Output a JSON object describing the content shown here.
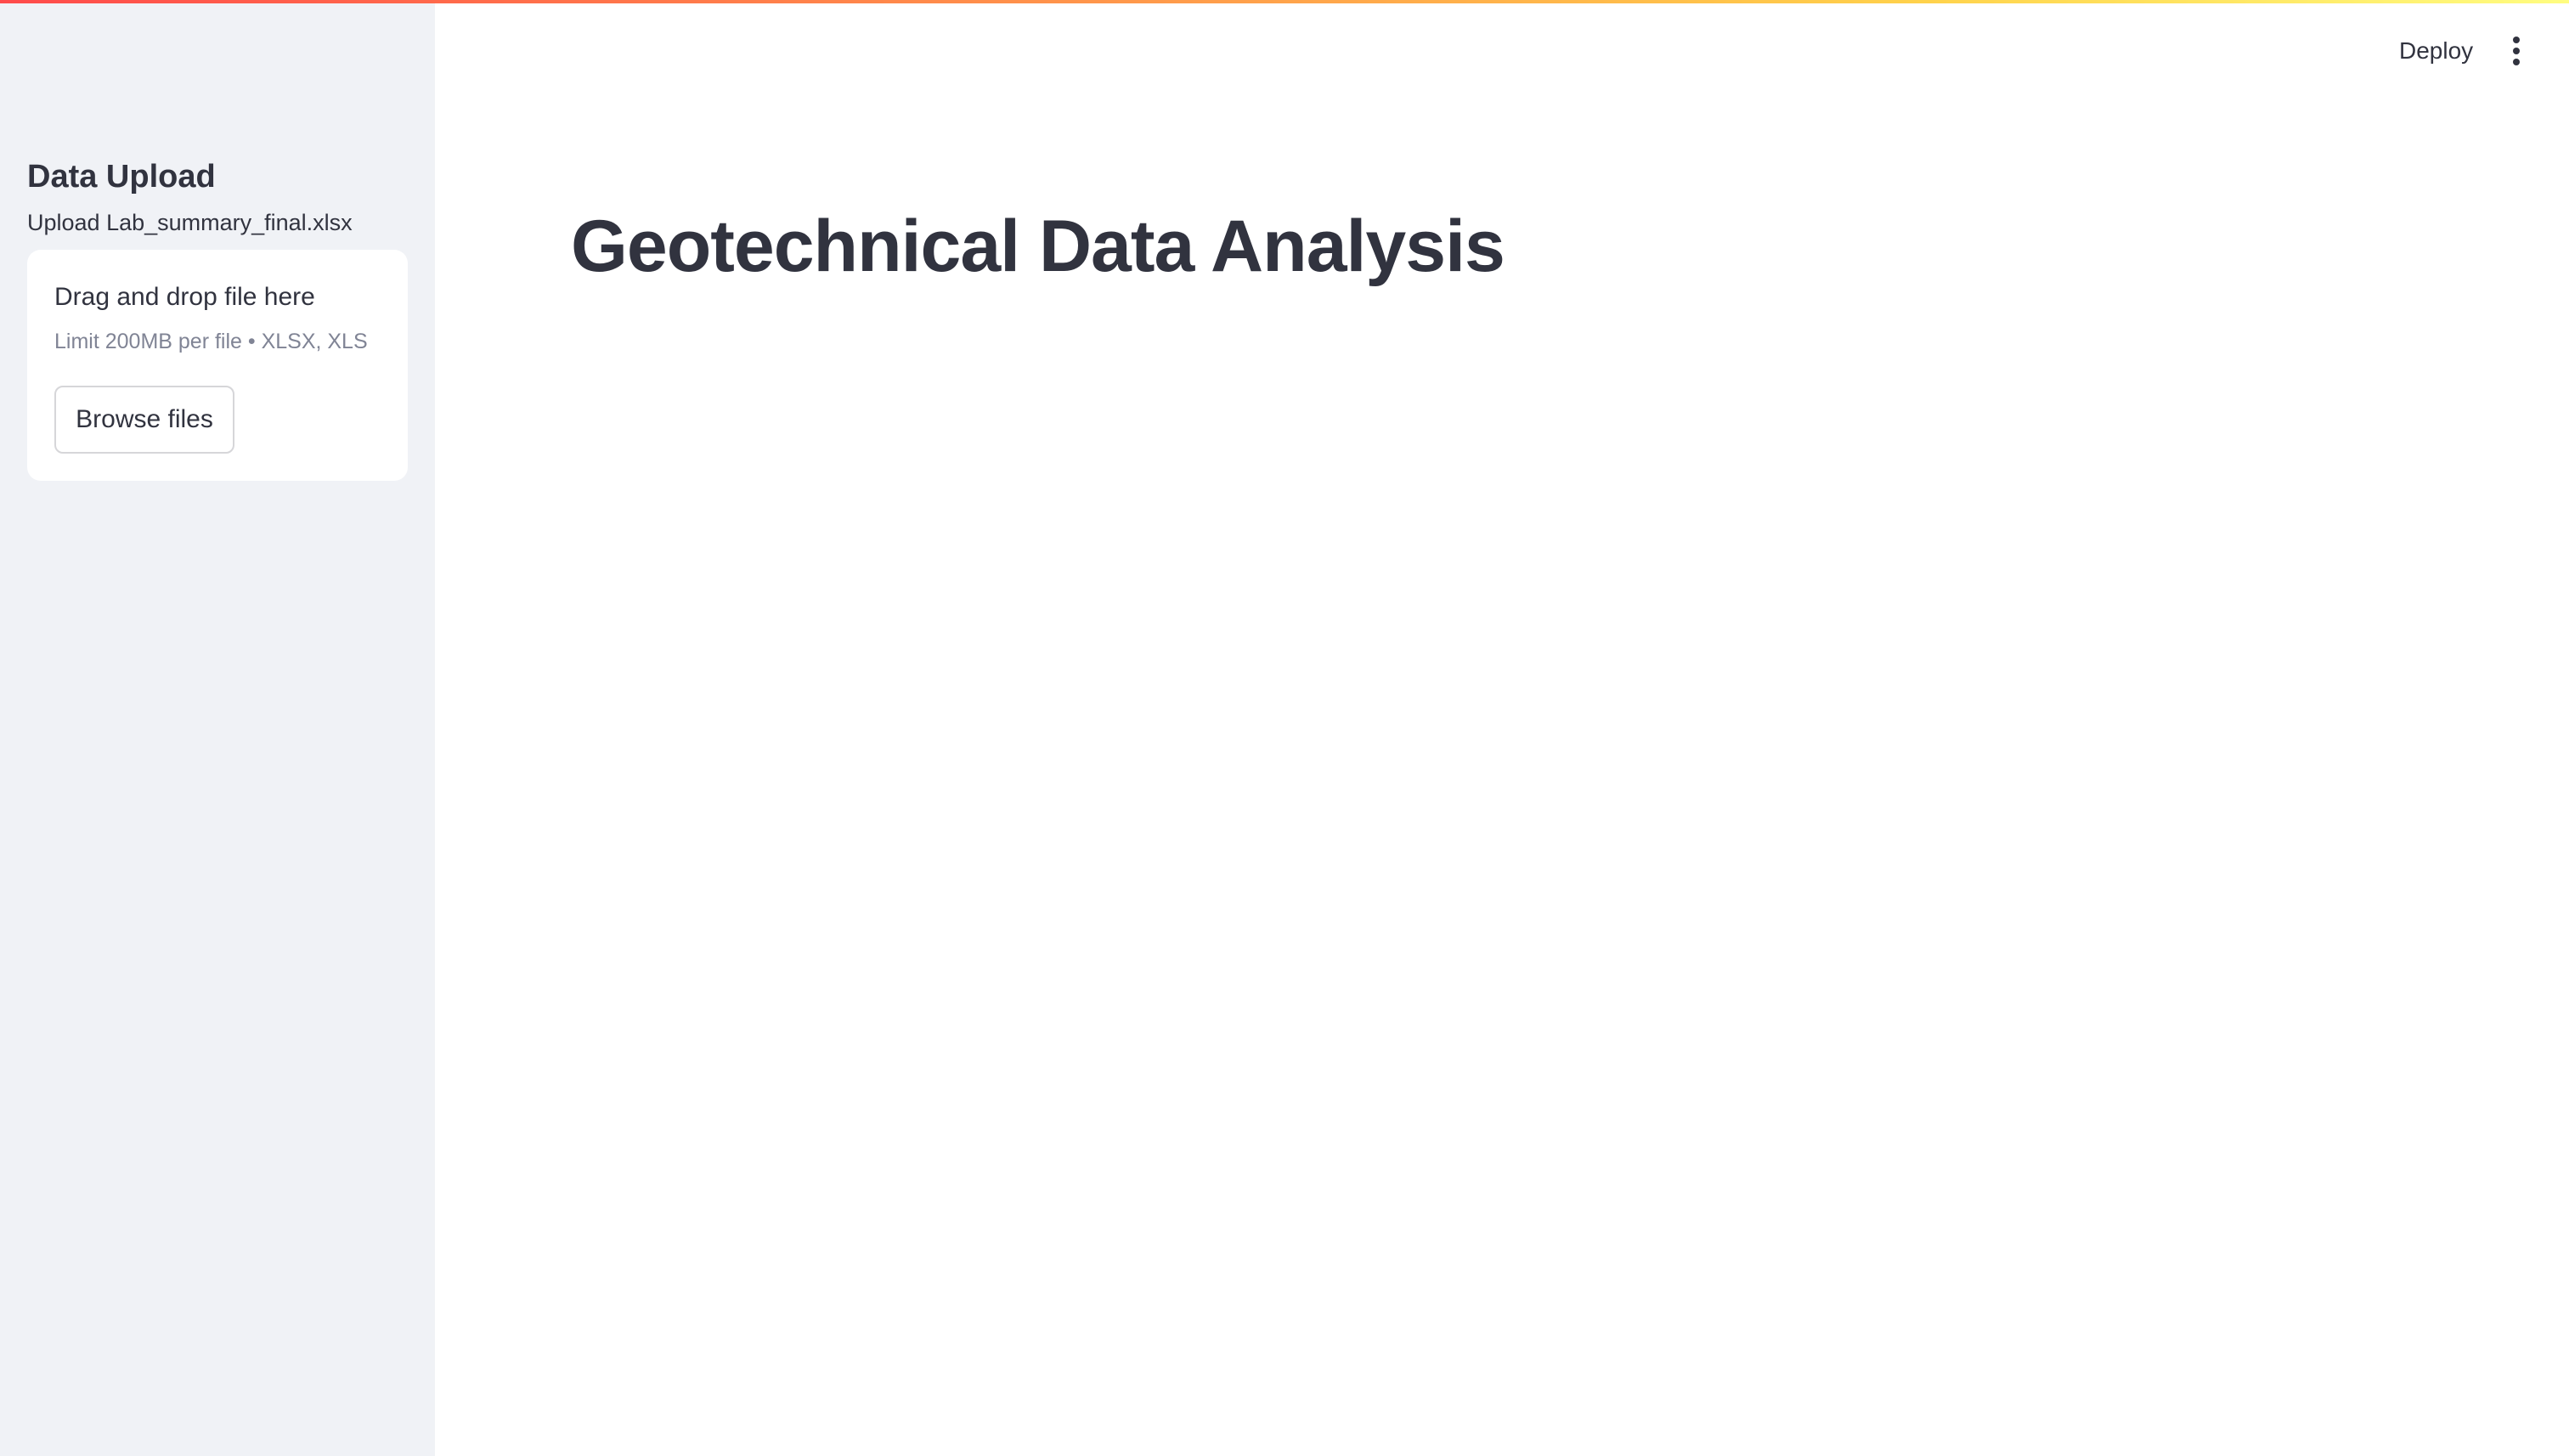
{
  "sidebar": {
    "title": "Data Upload",
    "uploader": {
      "label": "Upload Lab_summary_final.xlsx",
      "dropzone_title": "Drag and drop file here",
      "dropzone_hint": "Limit 200MB per file • XLSX, XLS",
      "browse_label": "Browse files"
    }
  },
  "header": {
    "deploy_label": "Deploy",
    "menu_icon": "vertical-ellipsis-icon"
  },
  "main": {
    "title": "Geotechnical Data Analysis"
  },
  "colors": {
    "accent_gradient_start": "#ff4b4b",
    "accent_gradient_end": "#fffd80",
    "sidebar_background": "#f0f2f6",
    "text": "#31333f",
    "muted_text": "#808495"
  }
}
